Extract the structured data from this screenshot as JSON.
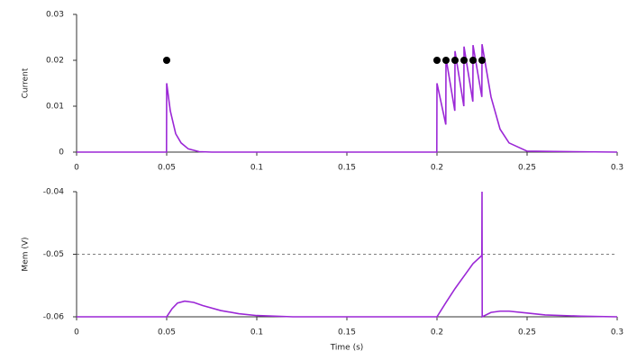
{
  "chart_data": [
    {
      "type": "line",
      "ylabel": "Current",
      "xlim": [
        0,
        0.3
      ],
      "xticks": [
        0,
        0.05,
        0.1,
        0.15,
        0.2,
        0.25,
        0.3
      ],
      "ylim": [
        0,
        0.03
      ],
      "yticks": [
        0,
        0.01,
        0.02,
        0.03
      ],
      "series": [
        {
          "color": "#9b27d6",
          "type": "line",
          "x": [
            0,
            0.0499,
            0.05,
            0.052,
            0.055,
            0.058,
            0.062,
            0.068,
            0.075,
            0.1999,
            0.2,
            0.2049,
            0.205,
            0.2099,
            0.21,
            0.2149,
            0.215,
            0.2199,
            0.22,
            0.2249,
            0.225,
            0.23,
            0.235,
            0.24,
            0.25,
            0.3
          ],
          "values": [
            0,
            0,
            0.015,
            0.009,
            0.004,
            0.002,
            0.0007,
            0.0001,
            0,
            0,
            0.015,
            0.006,
            0.0205,
            0.009,
            0.022,
            0.01,
            0.023,
            0.011,
            0.0233,
            0.012,
            0.0235,
            0.012,
            0.005,
            0.002,
            0.0002,
            0
          ]
        },
        {
          "color": "#000000",
          "type": "scatter",
          "x": [
            0.05,
            0.2,
            0.205,
            0.21,
            0.215,
            0.22,
            0.225
          ],
          "values": [
            0.02,
            0.02,
            0.02,
            0.02,
            0.02,
            0.02,
            0.02
          ]
        }
      ]
    },
    {
      "type": "line",
      "ylabel": "Mem (V)",
      "xlabel": "Time (s)",
      "xlim": [
        0,
        0.3
      ],
      "xticks": [
        0,
        0.05,
        0.1,
        0.15,
        0.2,
        0.25,
        0.3
      ],
      "ylim": [
        -0.06,
        -0.04
      ],
      "yticks": [
        -0.06,
        -0.05,
        -0.04
      ],
      "hline": -0.05,
      "hline_style": "dashed",
      "series": [
        {
          "color": "#9b27d6",
          "type": "line",
          "x": [
            0,
            0.05,
            0.053,
            0.056,
            0.06,
            0.065,
            0.07,
            0.08,
            0.09,
            0.1,
            0.12,
            0.2,
            0.205,
            0.21,
            0.215,
            0.22,
            0.2249,
            0.225,
            0.2251,
            0.23,
            0.235,
            0.24,
            0.25,
            0.26,
            0.28,
            0.3
          ],
          "values": [
            -0.06,
            -0.06,
            -0.0587,
            -0.0578,
            -0.0575,
            -0.0577,
            -0.0582,
            -0.059,
            -0.0595,
            -0.0598,
            -0.06,
            -0.06,
            -0.0577,
            -0.0555,
            -0.0535,
            -0.0515,
            -0.0502,
            -0.04,
            -0.06,
            -0.0593,
            -0.0591,
            -0.0591,
            -0.0594,
            -0.0597,
            -0.0599,
            -0.06
          ]
        }
      ]
    }
  ]
}
